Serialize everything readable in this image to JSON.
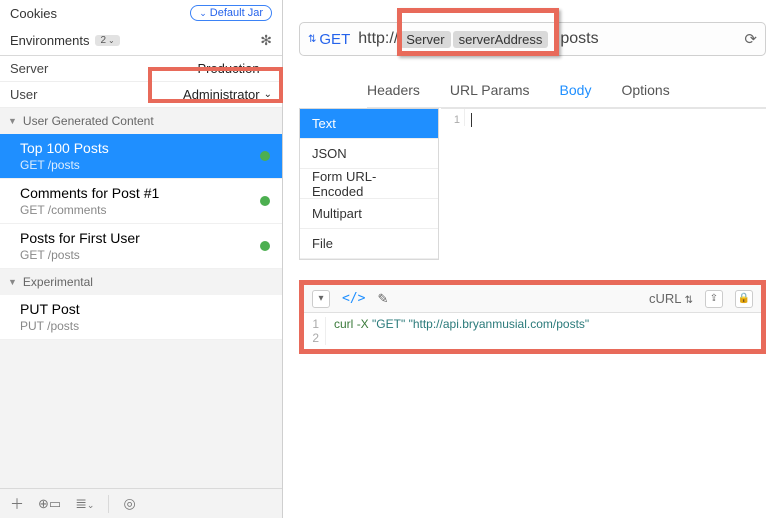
{
  "sidebar": {
    "cookies_label": "Cookies",
    "default_jar_label": "Default Jar",
    "environments_label": "Environments",
    "env_count": "2",
    "vars": [
      {
        "name": "Server",
        "value": "Production"
      },
      {
        "name": "User",
        "value": "Administrator"
      }
    ],
    "groups": [
      {
        "label": "User Generated Content",
        "requests": [
          {
            "title": "Top 100 Posts",
            "sub": "GET /posts",
            "selected": true,
            "dot": true
          },
          {
            "title": "Comments for Post #1",
            "sub": "GET /comments",
            "selected": false,
            "dot": true
          },
          {
            "title": "Posts for First User",
            "sub": "GET /posts",
            "selected": false,
            "dot": true
          }
        ]
      },
      {
        "label": "Experimental",
        "requests": [
          {
            "title": "PUT Post",
            "sub": "PUT /posts",
            "selected": false,
            "dot": false
          }
        ]
      }
    ]
  },
  "urlbar": {
    "method": "GET",
    "prefix": "http://",
    "token_group": "Server",
    "token_var": "serverAddress",
    "suffix": "posts"
  },
  "tabs": {
    "items": [
      "Headers",
      "URL Params",
      "Body",
      "Options"
    ],
    "active_index": 2
  },
  "body_types": {
    "items": [
      "Text",
      "JSON",
      "Form URL-Encoded",
      "Multipart",
      "File"
    ],
    "active_index": 0
  },
  "editor": {
    "line_numbers": [
      "1"
    ]
  },
  "code_panel": {
    "language_label": "cURL",
    "lines": [
      {
        "n": "1",
        "cmd": "curl",
        "flag": "-X",
        "arg1": "\"GET\"",
        "arg2": "\"http://api.bryanmusial.com/posts\""
      },
      {
        "n": "2"
      }
    ]
  },
  "colors": {
    "accent": "#1f8fff",
    "highlight_border": "#e86a5a",
    "status_dot": "#4caf50"
  }
}
